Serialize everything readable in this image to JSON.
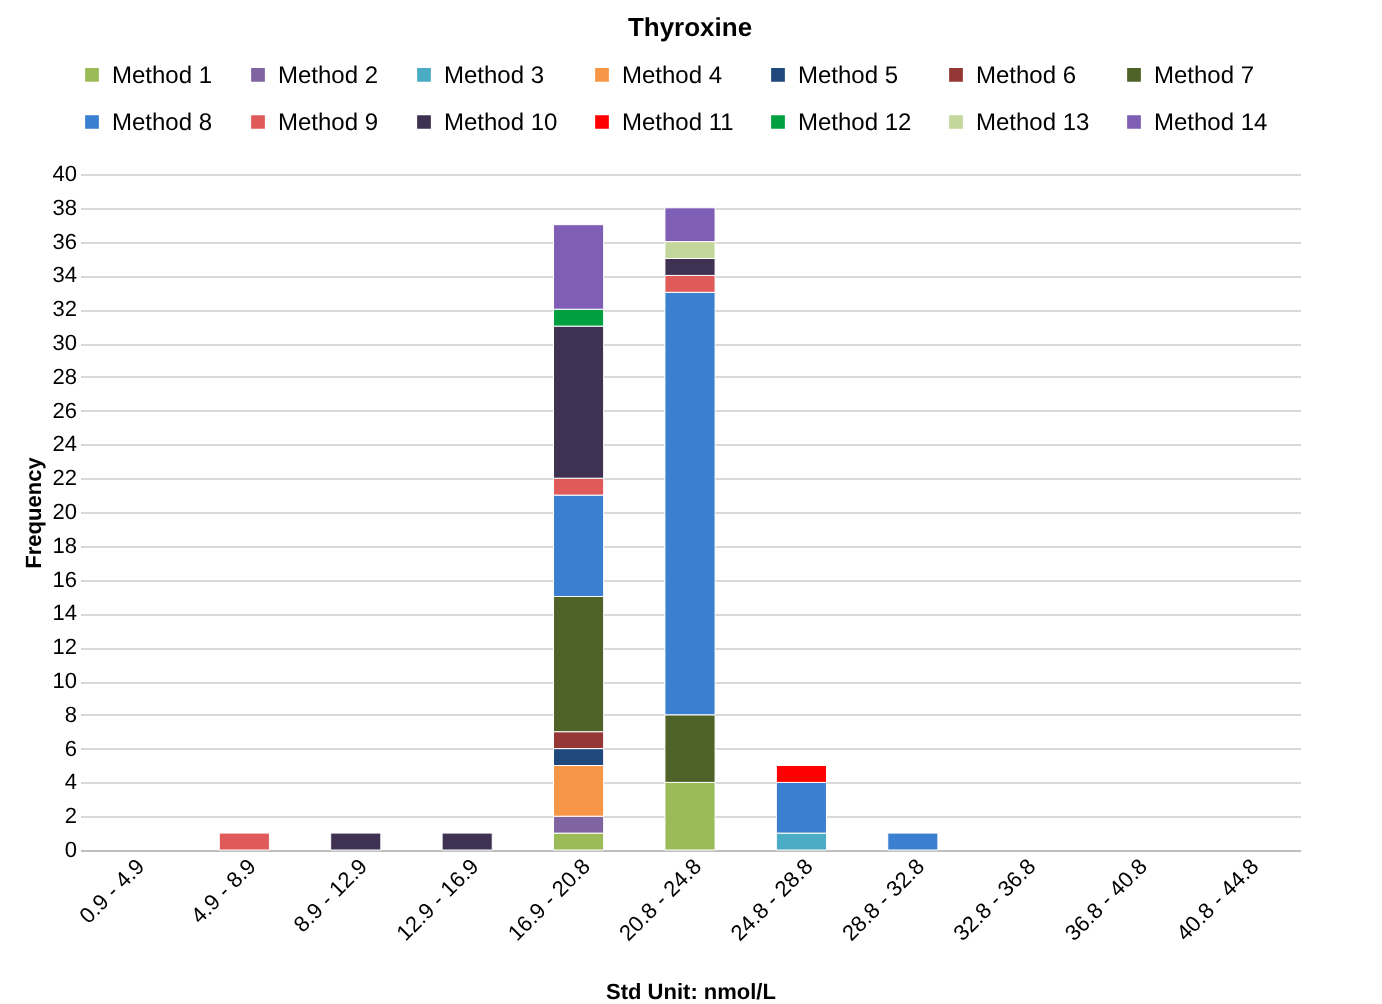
{
  "chart_data": {
    "type": "bar",
    "title": "Thyroxine",
    "xlabel": "Std Unit: nmol/L",
    "ylabel": "Frequency",
    "stacked": true,
    "legend": "top",
    "grid": "y",
    "categories": [
      "0.9 - 4.9",
      "4.9 - 8.9",
      "8.9 - 12.9",
      "12.9 - 16.9",
      "16.9 - 20.8",
      "20.8 - 24.8",
      "24.8 - 28.8",
      "28.8 - 32.8",
      "32.8 - 36.8",
      "36.8 - 40.8",
      "40.8 - 44.8"
    ],
    "ylim": [
      0,
      40
    ],
    "yticks": [
      0,
      2,
      4,
      6,
      8,
      10,
      12,
      14,
      16,
      18,
      20,
      22,
      24,
      26,
      28,
      30,
      32,
      34,
      36,
      38,
      40
    ],
    "series": [
      {
        "name": "Method 1",
        "color": "#9bbb59",
        "values": [
          null,
          null,
          null,
          null,
          1,
          4,
          null,
          null,
          null,
          null,
          null
        ]
      },
      {
        "name": "Method 2",
        "color": "#8064a2",
        "values": [
          null,
          null,
          null,
          null,
          1,
          null,
          null,
          null,
          null,
          null,
          null
        ]
      },
      {
        "name": "Method 3",
        "color": "#4bacc6",
        "values": [
          null,
          null,
          null,
          null,
          null,
          null,
          1,
          null,
          null,
          null,
          null
        ]
      },
      {
        "name": "Method 4",
        "color": "#f79646",
        "values": [
          null,
          null,
          null,
          null,
          3,
          null,
          null,
          null,
          null,
          null,
          null
        ]
      },
      {
        "name": "Method 5",
        "color": "#1f497d",
        "values": [
          null,
          null,
          null,
          null,
          1,
          null,
          null,
          null,
          null,
          null,
          null
        ]
      },
      {
        "name": "Method 6",
        "color": "#953735",
        "values": [
          null,
          null,
          null,
          null,
          1,
          null,
          null,
          null,
          null,
          null,
          null
        ]
      },
      {
        "name": "Method 7",
        "color": "#4f6228",
        "values": [
          null,
          null,
          null,
          null,
          8,
          4,
          null,
          null,
          null,
          null,
          null
        ]
      },
      {
        "name": "Method 8",
        "color": "#3a7fd0",
        "values": [
          null,
          null,
          null,
          null,
          6,
          25,
          3,
          1,
          null,
          null,
          null
        ]
      },
      {
        "name": "Method 9",
        "color": "#e05a5a",
        "values": [
          null,
          1,
          null,
          null,
          1,
          1,
          null,
          null,
          null,
          null,
          null
        ]
      },
      {
        "name": "Method 10",
        "color": "#3f3151",
        "values": [
          null,
          null,
          1,
          1,
          9,
          1,
          null,
          null,
          null,
          null,
          null
        ]
      },
      {
        "name": "Method 11",
        "color": "#ff0000",
        "values": [
          null,
          null,
          null,
          null,
          null,
          null,
          1,
          null,
          null,
          null,
          null
        ]
      },
      {
        "name": "Method 12",
        "color": "#00a040",
        "values": [
          null,
          null,
          null,
          null,
          1,
          null,
          null,
          null,
          null,
          null,
          null
        ]
      },
      {
        "name": "Method 13",
        "color": "#c3d69b",
        "values": [
          null,
          null,
          null,
          null,
          null,
          1,
          null,
          null,
          null,
          null,
          null
        ]
      },
      {
        "name": "Method 14",
        "color": "#7f5fb5",
        "values": [
          null,
          null,
          null,
          null,
          5,
          2,
          null,
          null,
          null,
          null,
          null
        ]
      }
    ]
  }
}
